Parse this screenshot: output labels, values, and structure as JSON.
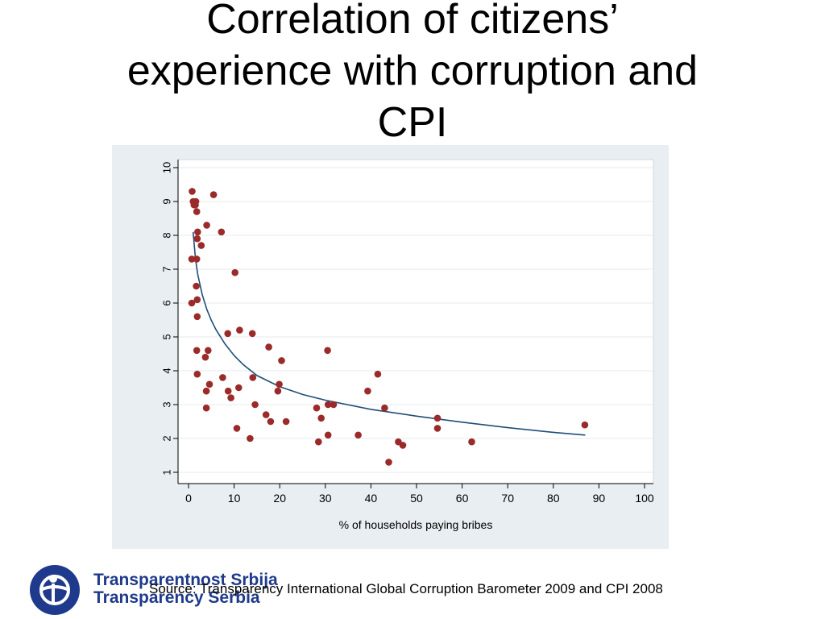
{
  "slide": {
    "title": "Correlation of citizens’\nexperience with corruption and\nCPI",
    "source": "Source: Transparency International Global Corruption Barometer 2009 and CPI 2008"
  },
  "logo": {
    "line1": "Transparentnost Srbija",
    "line2": "Transparency Serbia",
    "color": "#1f3a8c"
  },
  "chart_data": {
    "type": "scatter",
    "title": "",
    "xlabel": "% of households paying bribes",
    "ylabel": "",
    "xlim": [
      0,
      100
    ],
    "ylim": [
      1,
      10
    ],
    "xticks": [
      0,
      10,
      20,
      30,
      40,
      50,
      60,
      70,
      80,
      90,
      100
    ],
    "yticks": [
      1,
      2,
      3,
      4,
      5,
      6,
      7,
      8,
      9,
      10
    ],
    "grid": true,
    "marker_color": "#9b2b2b",
    "line_color": "#1f4e79",
    "points": [
      [
        0.8,
        9.3
      ],
      [
        1.0,
        9.0
      ],
      [
        1.2,
        8.9
      ],
      [
        1.6,
        9.0
      ],
      [
        1.5,
        8.9
      ],
      [
        1.8,
        8.7
      ],
      [
        5.5,
        9.2
      ],
      [
        2.0,
        8.1
      ],
      [
        4.0,
        8.3
      ],
      [
        7.2,
        8.1
      ],
      [
        1.9,
        7.9
      ],
      [
        2.8,
        7.7
      ],
      [
        0.7,
        7.3
      ],
      [
        1.8,
        7.3
      ],
      [
        10.2,
        6.9
      ],
      [
        1.7,
        6.5
      ],
      [
        0.7,
        6.0
      ],
      [
        1.9,
        6.1
      ],
      [
        1.9,
        5.6
      ],
      [
        8.6,
        5.1
      ],
      [
        11.2,
        5.2
      ],
      [
        14.0,
        5.1
      ],
      [
        1.8,
        4.6
      ],
      [
        4.3,
        4.6
      ],
      [
        17.6,
        4.7
      ],
      [
        30.5,
        4.6
      ],
      [
        3.7,
        4.4
      ],
      [
        20.4,
        4.3
      ],
      [
        1.9,
        3.9
      ],
      [
        7.5,
        3.8
      ],
      [
        14.1,
        3.8
      ],
      [
        41.5,
        3.9
      ],
      [
        4.6,
        3.6
      ],
      [
        19.9,
        3.6
      ],
      [
        3.9,
        3.4
      ],
      [
        8.7,
        3.4
      ],
      [
        11.0,
        3.5
      ],
      [
        39.3,
        3.4
      ],
      [
        19.6,
        3.4
      ],
      [
        9.3,
        3.2
      ],
      [
        3.9,
        2.9
      ],
      [
        14.6,
        3.0
      ],
      [
        30.6,
        3.0
      ],
      [
        31.8,
        3.0
      ],
      [
        28.1,
        2.9
      ],
      [
        43.0,
        2.9
      ],
      [
        17.0,
        2.7
      ],
      [
        18.0,
        2.5
      ],
      [
        21.4,
        2.5
      ],
      [
        29.1,
        2.6
      ],
      [
        54.6,
        2.6
      ],
      [
        54.6,
        2.3
      ],
      [
        10.6,
        2.3
      ],
      [
        13.5,
        2.0
      ],
      [
        28.5,
        1.9
      ],
      [
        30.6,
        2.1
      ],
      [
        37.2,
        2.1
      ],
      [
        46.0,
        1.9
      ],
      [
        47.0,
        1.8
      ],
      [
        62.1,
        1.9
      ],
      [
        86.9,
        2.4
      ],
      [
        43.9,
        1.3
      ]
    ],
    "fit": {
      "x": [
        1,
        1.5,
        2,
        3,
        4,
        5,
        6,
        8,
        10,
        12,
        15,
        20,
        25,
        30,
        40,
        50,
        60,
        70,
        80,
        87
      ],
      "y": [
        8.1,
        7.34,
        6.86,
        6.25,
        5.82,
        5.49,
        5.22,
        4.79,
        4.45,
        4.18,
        3.86,
        3.53,
        3.3,
        3.13,
        2.86,
        2.66,
        2.48,
        2.32,
        2.18,
        2.1
      ]
    }
  }
}
